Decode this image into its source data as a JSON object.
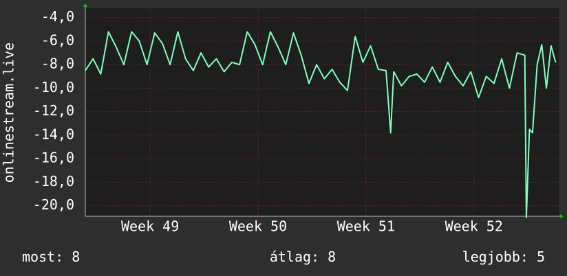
{
  "chart_data": {
    "type": "line",
    "y_label": "onlinestream.live",
    "x": [
      0,
      0.5,
      1,
      1.5,
      2,
      2.5,
      3,
      3.5,
      4,
      4.5,
      5,
      5.5,
      6,
      6.5,
      7,
      7.5,
      8,
      8.5,
      9,
      9.5,
      10,
      10.5,
      11,
      11.5,
      12,
      12.5,
      13,
      13.5,
      14,
      14.5,
      15,
      15.5,
      16,
      16.5,
      17,
      17.5,
      18,
      18.5,
      19,
      19.5,
      19.8,
      20,
      20.5,
      21,
      21.5,
      22,
      22.5,
      23,
      23.5,
      24,
      24.5,
      25,
      25.5,
      26,
      26.5,
      27,
      27.5,
      28,
      28.5,
      28.6,
      28.8,
      29,
      29.3,
      29.6,
      29.9,
      30.2,
      30.5
    ],
    "series": [
      {
        "name": "onlinestream.live",
        "color": "#80ffc0",
        "values": [
          -8.5,
          -7.5,
          -8.8,
          -5.2,
          -6.5,
          -8,
          -5.2,
          -6,
          -8,
          -5.3,
          -6.2,
          -8,
          -5.2,
          -7.5,
          -8.5,
          -7,
          -8.2,
          -7.5,
          -8.6,
          -7.8,
          -8,
          -5.2,
          -6.3,
          -8,
          -5.2,
          -6.5,
          -8,
          -5.3,
          -7.2,
          -9.6,
          -8,
          -9.2,
          -8.4,
          -9.5,
          -10.2,
          -5.6,
          -7.8,
          -6.4,
          -8.4,
          -8.5,
          -13.8,
          -8.6,
          -9.8,
          -9,
          -8.8,
          -9.5,
          -8.2,
          -9.5,
          -7.8,
          -9,
          -9.8,
          -8.6,
          -10.8,
          -9,
          -9.6,
          -7.5,
          -10,
          -7,
          -7.2,
          -21,
          -13.5,
          -13.8,
          -8,
          -6.3,
          -10,
          -6.4,
          -7.8
        ]
      }
    ],
    "xlim": [
      0,
      30.7
    ],
    "xticks": [
      {
        "value": 4.2,
        "label": "Week 49"
      },
      {
        "value": 11.2,
        "label": "Week 50"
      },
      {
        "value": 18.2,
        "label": "Week 51"
      },
      {
        "value": 25.2,
        "label": "Week 52"
      }
    ],
    "ylim": [
      -20.9,
      -3.2
    ],
    "yticks": [
      {
        "value": -4,
        "label": "-4,0"
      },
      {
        "value": -6,
        "label": "-6,0"
      },
      {
        "value": -8,
        "label": "-8,0"
      },
      {
        "value": -10,
        "label": "-10,0"
      },
      {
        "value": -12,
        "label": "-12,0"
      },
      {
        "value": -14,
        "label": "-14,0"
      },
      {
        "value": -16,
        "label": "-16,0"
      },
      {
        "value": -18,
        "label": "-18,0"
      },
      {
        "value": -20,
        "label": "-20,0"
      }
    ],
    "grid": true,
    "stats": [
      {
        "label": "most:",
        "value": 8
      },
      {
        "label": "átlag:",
        "value": 8
      },
      {
        "label": "legjobb:",
        "value": 5
      }
    ]
  }
}
